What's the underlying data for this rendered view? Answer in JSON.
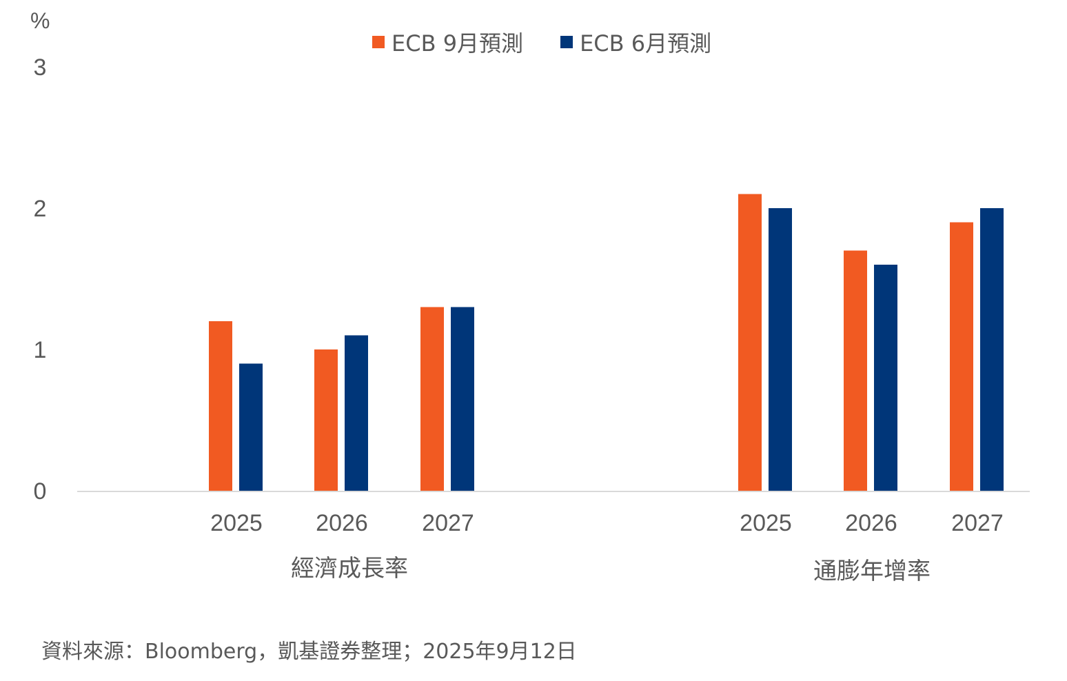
{
  "chart_data": {
    "type": "bar",
    "title": "",
    "ylabel": "%",
    "xlabel": "",
    "ylim": [
      0,
      3
    ],
    "yticks": [
      0,
      1,
      2,
      3
    ],
    "grid": false,
    "legend_position": "top-center",
    "groups": [
      {
        "label": "經濟成長率",
        "categories": [
          "2025",
          "2026",
          "2027"
        ]
      },
      {
        "label": "通膨年增率",
        "categories": [
          "2025",
          "2026",
          "2027"
        ]
      }
    ],
    "series": [
      {
        "name": "ECB 9月預測",
        "color": "#F15A22",
        "values": [
          [
            1.2,
            1.0,
            1.3
          ],
          [
            2.1,
            1.7,
            1.9
          ]
        ]
      },
      {
        "name": "ECB 6月預測",
        "color": "#003679",
        "values": [
          [
            0.9,
            1.1,
            1.3
          ],
          [
            2.0,
            1.6,
            2.0
          ]
        ]
      }
    ]
  },
  "unit_label": "%",
  "source_note": "資料來源：Bloomberg，凱基證券整理；2025年9月12日"
}
